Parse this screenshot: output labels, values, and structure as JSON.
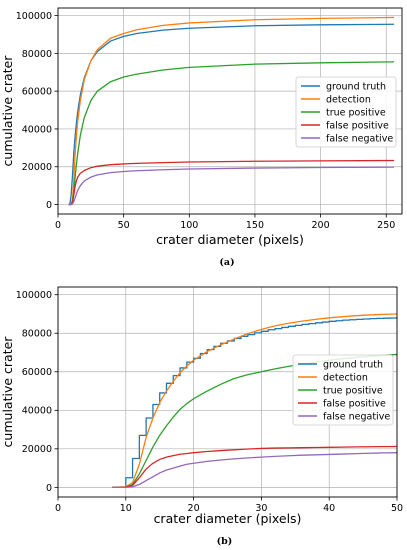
{
  "chart_data": [
    {
      "type": "line",
      "caption": "(a)",
      "xlabel": "crater diameter (pixels)",
      "ylabel": "cumulative crater",
      "xlim": [
        0,
        262
      ],
      "ylim": [
        -5000,
        104000
      ],
      "xticks": [
        0,
        50,
        100,
        150,
        200,
        250
      ],
      "yticks": [
        0,
        20000,
        40000,
        60000,
        80000,
        100000
      ],
      "grid": true,
      "legend_position": "center-right",
      "series": [
        {
          "name": "ground truth",
          "color": "#1f77b4",
          "x": [
            8,
            9,
            10,
            11,
            12,
            13,
            14,
            15,
            17,
            20,
            25,
            30,
            40,
            50,
            60,
            80,
            100,
            150,
            200,
            256
          ],
          "y": [
            0,
            0,
            5000,
            15000,
            27000,
            36000,
            43000,
            49000,
            58000,
            67000,
            76000,
            81000,
            86500,
            89000,
            90500,
            92300,
            93300,
            94600,
            95100,
            95400
          ]
        },
        {
          "name": "detection",
          "color": "#ff7f0e",
          "x": [
            8,
            9,
            10,
            11,
            12,
            13,
            14,
            15,
            17,
            20,
            25,
            30,
            40,
            50,
            60,
            80,
            100,
            150,
            200,
            256
          ],
          "y": [
            0,
            0,
            300,
            2500,
            12000,
            26000,
            36000,
            44000,
            55000,
            66000,
            76000,
            82000,
            88000,
            90500,
            92500,
            94800,
            96100,
            97800,
            98500,
            99000
          ]
        },
        {
          "name": "true positive",
          "color": "#2ca02c",
          "x": [
            8,
            9,
            10,
            11,
            12,
            13,
            14,
            15,
            17,
            20,
            25,
            30,
            40,
            50,
            60,
            80,
            100,
            150,
            200,
            256
          ],
          "y": [
            0,
            0,
            200,
            1500,
            7000,
            14000,
            21000,
            27000,
            36500,
            46000,
            55000,
            60000,
            65000,
            67500,
            69000,
            71200,
            72600,
            74300,
            75000,
            75500
          ]
        },
        {
          "name": "false positive",
          "color": "#d62728",
          "x": [
            8,
            9,
            10,
            11,
            12,
            13,
            14,
            15,
            17,
            20,
            25,
            30,
            40,
            50,
            60,
            80,
            100,
            150,
            200,
            256
          ],
          "y": [
            0,
            0,
            100,
            1000,
            5000,
            9500,
            12500,
            14500,
            16500,
            18000,
            19500,
            20300,
            21100,
            21500,
            21800,
            22200,
            22500,
            22900,
            23100,
            23300
          ]
        },
        {
          "name": "false negative",
          "color": "#9467bd",
          "x": [
            8,
            9,
            10,
            11,
            12,
            13,
            14,
            15,
            17,
            20,
            25,
            30,
            40,
            50,
            60,
            80,
            100,
            150,
            200,
            256
          ],
          "y": [
            0,
            0,
            0,
            300,
            1500,
            3500,
            5500,
            7500,
            10000,
            12500,
            14500,
            15700,
            16900,
            17500,
            17900,
            18400,
            18800,
            19300,
            19600,
            19800
          ]
        }
      ]
    },
    {
      "type": "line",
      "caption": "(b)",
      "xlabel": "crater diameter (pixels)",
      "ylabel": "cumulative crater",
      "xlim": [
        0,
        50
      ],
      "ylim": [
        -5000,
        104000
      ],
      "xticks": [
        0,
        10,
        20,
        30,
        40,
        50
      ],
      "yticks": [
        0,
        20000,
        40000,
        60000,
        80000,
        100000
      ],
      "grid": true,
      "legend_position": "center-right",
      "series": [
        {
          "name": "ground truth",
          "color": "#1f77b4",
          "step": true,
          "x": [
            8,
            10,
            11,
            12,
            13,
            14,
            15,
            16,
            17,
            18,
            19,
            20,
            21,
            22,
            23,
            24,
            25,
            26,
            27,
            28,
            29,
            30,
            31,
            32,
            33,
            34,
            35,
            36,
            37,
            38,
            39,
            40,
            41,
            42,
            43,
            44,
            45,
            46,
            47,
            48,
            49,
            50
          ],
          "y": [
            0,
            5000,
            15000,
            27000,
            36000,
            43000,
            49000,
            54000,
            58000,
            62000,
            65000,
            67000,
            69500,
            71500,
            73200,
            74800,
            76000,
            77300,
            78400,
            79300,
            80200,
            81000,
            81800,
            82400,
            83000,
            83600,
            84100,
            84600,
            85000,
            85400,
            85800,
            86200,
            86500,
            86800,
            87000,
            87200,
            87400,
            87600,
            87700,
            87800,
            87900,
            88000
          ]
        },
        {
          "name": "detection",
          "color": "#ff7f0e",
          "x": [
            8,
            10,
            11,
            12,
            13,
            14,
            15,
            16,
            17,
            18,
            19,
            20,
            22,
            24,
            26,
            28,
            30,
            32,
            34,
            36,
            38,
            40,
            42,
            44,
            46,
            48,
            50
          ],
          "y": [
            0,
            300,
            2500,
            12000,
            26000,
            36000,
            44000,
            50000,
            55000,
            59500,
            63000,
            66000,
            70500,
            74000,
            77000,
            79800,
            82000,
            83800,
            85200,
            86300,
            87200,
            88000,
            88600,
            89100,
            89500,
            89800,
            90000
          ]
        },
        {
          "name": "true positive",
          "color": "#2ca02c",
          "x": [
            8,
            10,
            11,
            12,
            13,
            14,
            15,
            16,
            17,
            18,
            19,
            20,
            22,
            24,
            26,
            28,
            30,
            32,
            34,
            36,
            38,
            40,
            42,
            44,
            46,
            48,
            50
          ],
          "y": [
            0,
            200,
            1500,
            7000,
            14000,
            21000,
            27000,
            32000,
            36500,
            40500,
            43500,
            46000,
            50000,
            53500,
            56500,
            58500,
            60000,
            61500,
            62800,
            64000,
            65000,
            66000,
            66800,
            67500,
            68000,
            68500,
            69000
          ]
        },
        {
          "name": "false positive",
          "color": "#d62728",
          "x": [
            8,
            10,
            11,
            12,
            13,
            14,
            15,
            16,
            17,
            18,
            19,
            20,
            22,
            24,
            26,
            28,
            30,
            32,
            34,
            36,
            38,
            40,
            42,
            44,
            46,
            48,
            50
          ],
          "y": [
            0,
            100,
            1000,
            5000,
            9500,
            12500,
            14500,
            15700,
            16500,
            17200,
            17600,
            18000,
            18600,
            19100,
            19500,
            19900,
            20200,
            20400,
            20500,
            20600,
            20700,
            20800,
            20900,
            21000,
            21100,
            21150,
            21200
          ]
        },
        {
          "name": "false negative",
          "color": "#9467bd",
          "x": [
            8,
            10,
            11,
            12,
            13,
            14,
            15,
            16,
            17,
            18,
            19,
            20,
            22,
            24,
            26,
            28,
            30,
            32,
            34,
            36,
            38,
            40,
            42,
            44,
            46,
            48,
            50
          ],
          "y": [
            0,
            0,
            300,
            1500,
            3500,
            5500,
            7500,
            9000,
            10000,
            11000,
            12000,
            12500,
            13500,
            14200,
            14800,
            15300,
            15700,
            16100,
            16400,
            16700,
            16900,
            17100,
            17300,
            17500,
            17700,
            17900,
            18000
          ]
        }
      ]
    }
  ]
}
